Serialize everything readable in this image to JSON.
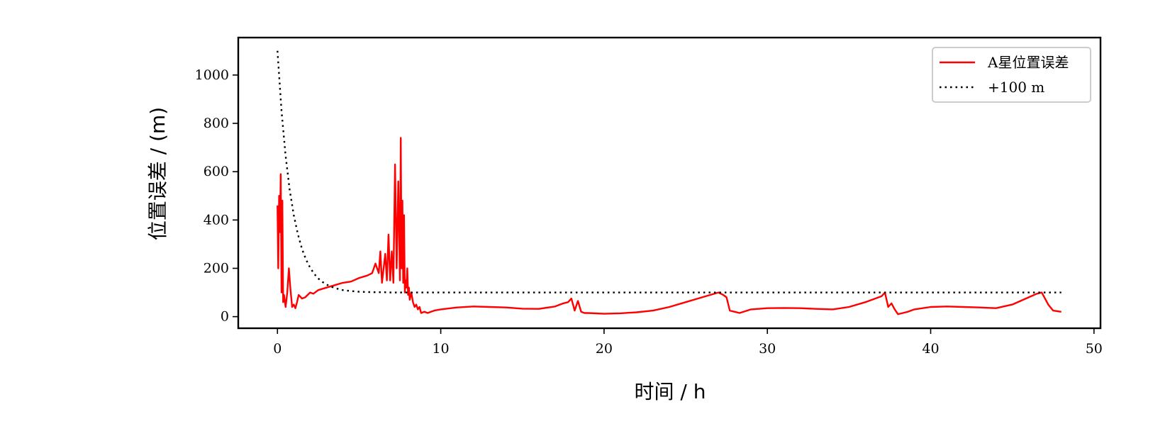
{
  "chart_data": {
    "type": "line",
    "xlabel": "时间 / h",
    "ylabel": "位置误差 / (m)",
    "xlim": [
      -2.4,
      50.4
    ],
    "ylim": [
      -48,
      1155
    ],
    "xticks": [
      0,
      10,
      20,
      30,
      40,
      50
    ],
    "yticks": [
      0,
      200,
      400,
      600,
      800,
      1000
    ],
    "grid": false,
    "legend": "top-right",
    "series": [
      {
        "name": "A星位置误差",
        "color": "#ff0000",
        "style": "solid",
        "x": [
          0,
          0.05,
          0.1,
          0.15,
          0.2,
          0.25,
          0.3,
          0.35,
          0.4,
          0.5,
          0.6,
          0.7,
          0.8,
          0.9,
          1.0,
          1.1,
          1.2,
          1.3,
          1.5,
          1.7,
          2.0,
          2.2,
          2.5,
          3.0,
          3.5,
          4.0,
          4.5,
          5.0,
          5.5,
          5.8,
          6.0,
          6.2,
          6.3,
          6.4,
          6.5,
          6.6,
          6.7,
          6.8,
          6.9,
          7.0,
          7.1,
          7.2,
          7.3,
          7.4,
          7.5,
          7.55,
          7.6,
          7.65,
          7.7,
          7.75,
          7.8,
          7.85,
          7.9,
          7.95,
          8.0,
          8.05,
          8.1,
          8.2,
          8.3,
          8.4,
          8.5,
          8.6,
          8.7,
          8.8,
          9.0,
          9.2,
          9.4,
          9.6,
          10,
          11,
          12,
          13,
          14,
          15,
          16,
          17,
          17.5,
          17.8,
          18.0,
          18.2,
          18.4,
          18.6,
          18.8,
          19,
          20,
          21,
          22,
          23,
          24,
          25,
          26,
          27,
          27.3,
          27.5,
          27.7,
          28.0,
          28.3,
          29,
          30,
          31,
          32,
          33,
          34,
          35,
          36,
          37,
          37.2,
          37.4,
          37.6,
          37.8,
          38.0,
          38.3,
          38.6,
          39,
          40,
          41,
          42,
          43,
          44,
          45,
          46,
          46.5,
          46.8,
          47.0,
          47.2,
          47.5,
          48
        ],
        "y": [
          460,
          200,
          500,
          350,
          590,
          100,
          480,
          60,
          90,
          40,
          100,
          200,
          110,
          40,
          50,
          35,
          60,
          90,
          75,
          80,
          100,
          95,
          110,
          120,
          130,
          140,
          145,
          160,
          170,
          180,
          220,
          180,
          270,
          140,
          200,
          260,
          150,
          340,
          150,
          270,
          140,
          630,
          200,
          560,
          150,
          740,
          200,
          480,
          140,
          420,
          100,
          150,
          120,
          200,
          90,
          120,
          70,
          100,
          60,
          40,
          50,
          30,
          40,
          15,
          20,
          15,
          20,
          25,
          30,
          38,
          42,
          40,
          38,
          33,
          32,
          42,
          55,
          60,
          75,
          25,
          65,
          20,
          15,
          15,
          12,
          14,
          18,
          25,
          40,
          60,
          80,
          100,
          90,
          80,
          25,
          20,
          15,
          30,
          35,
          36,
          35,
          32,
          30,
          40,
          60,
          85,
          100,
          40,
          55,
          30,
          10,
          15,
          20,
          30,
          40,
          42,
          40,
          38,
          35,
          50,
          80,
          95,
          100,
          75,
          50,
          25,
          20
        ]
      },
      {
        "name": "+100 m",
        "color": "#000000",
        "style": "dotted",
        "x": [
          0,
          0.25,
          0.5,
          0.75,
          1,
          1.25,
          1.5,
          1.75,
          2,
          2.25,
          2.5,
          2.75,
          3,
          3.25,
          3.5,
          3.75,
          4,
          4.5,
          5,
          5.5,
          6,
          6.5,
          7,
          8,
          9,
          10,
          15,
          20,
          25,
          30,
          35,
          40,
          45,
          48
        ],
        "y": [
          1100,
          852,
          665,
          525,
          420,
          341,
          281,
          236,
          203,
          177,
          158,
          144,
          133,
          125,
          119,
          114,
          110,
          106,
          103,
          102,
          101,
          101,
          100,
          100,
          100,
          100,
          100,
          100,
          100,
          100,
          100,
          100,
          100,
          100
        ]
      }
    ]
  }
}
